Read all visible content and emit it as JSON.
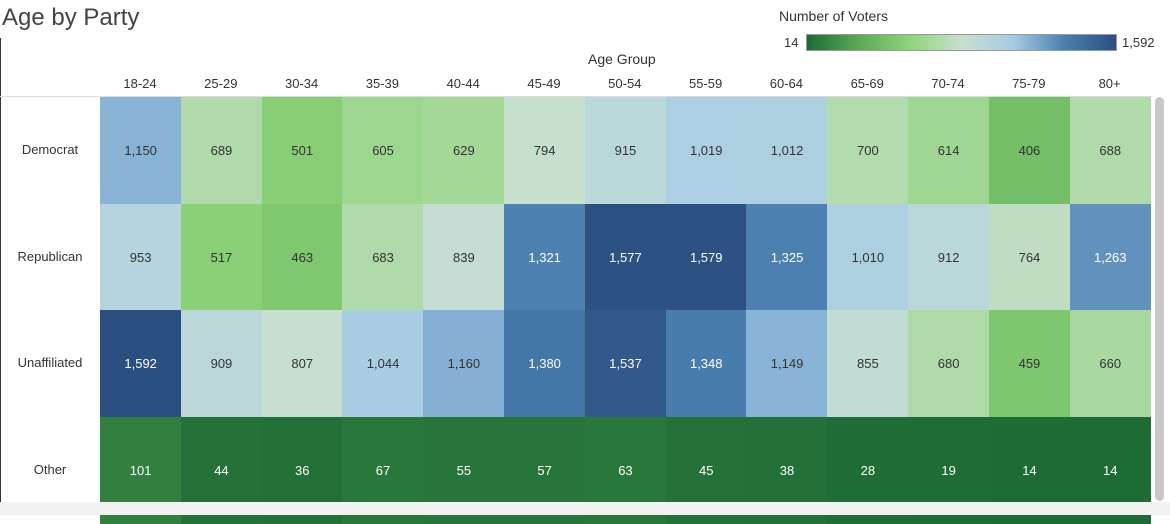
{
  "chart_data": {
    "type": "heatmap",
    "title": "Age by Party",
    "xlabel": "Age Group",
    "legend": {
      "title": "Number of Voters",
      "min_label": "14",
      "max_label": "1,592",
      "min": 14,
      "max": 1592
    },
    "categories": [
      "18-24",
      "25-29",
      "30-34",
      "35-39",
      "40-44",
      "45-49",
      "50-54",
      "55-59",
      "60-64",
      "65-69",
      "70-74",
      "75-79",
      "80+"
    ],
    "rows": [
      "Democrat",
      "Republican",
      "Unaffiliated",
      "Other"
    ],
    "values": [
      [
        1150,
        689,
        501,
        605,
        629,
        794,
        915,
        1019,
        1012,
        700,
        614,
        406,
        688
      ],
      [
        953,
        517,
        463,
        683,
        839,
        1321,
        1577,
        1579,
        1325,
        1010,
        912,
        764,
        1263
      ],
      [
        1592,
        909,
        807,
        1044,
        1160,
        1380,
        1537,
        1348,
        1149,
        855,
        680,
        459,
        660
      ],
      [
        101,
        44,
        36,
        67,
        55,
        57,
        63,
        45,
        38,
        28,
        19,
        14,
        14
      ]
    ],
    "color_scale": [
      "#1d6b35",
      "#5aaa55",
      "#8fd47a",
      "#c9dfd0",
      "#a6cce6",
      "#4a7fb0",
      "#2a4f80"
    ]
  }
}
